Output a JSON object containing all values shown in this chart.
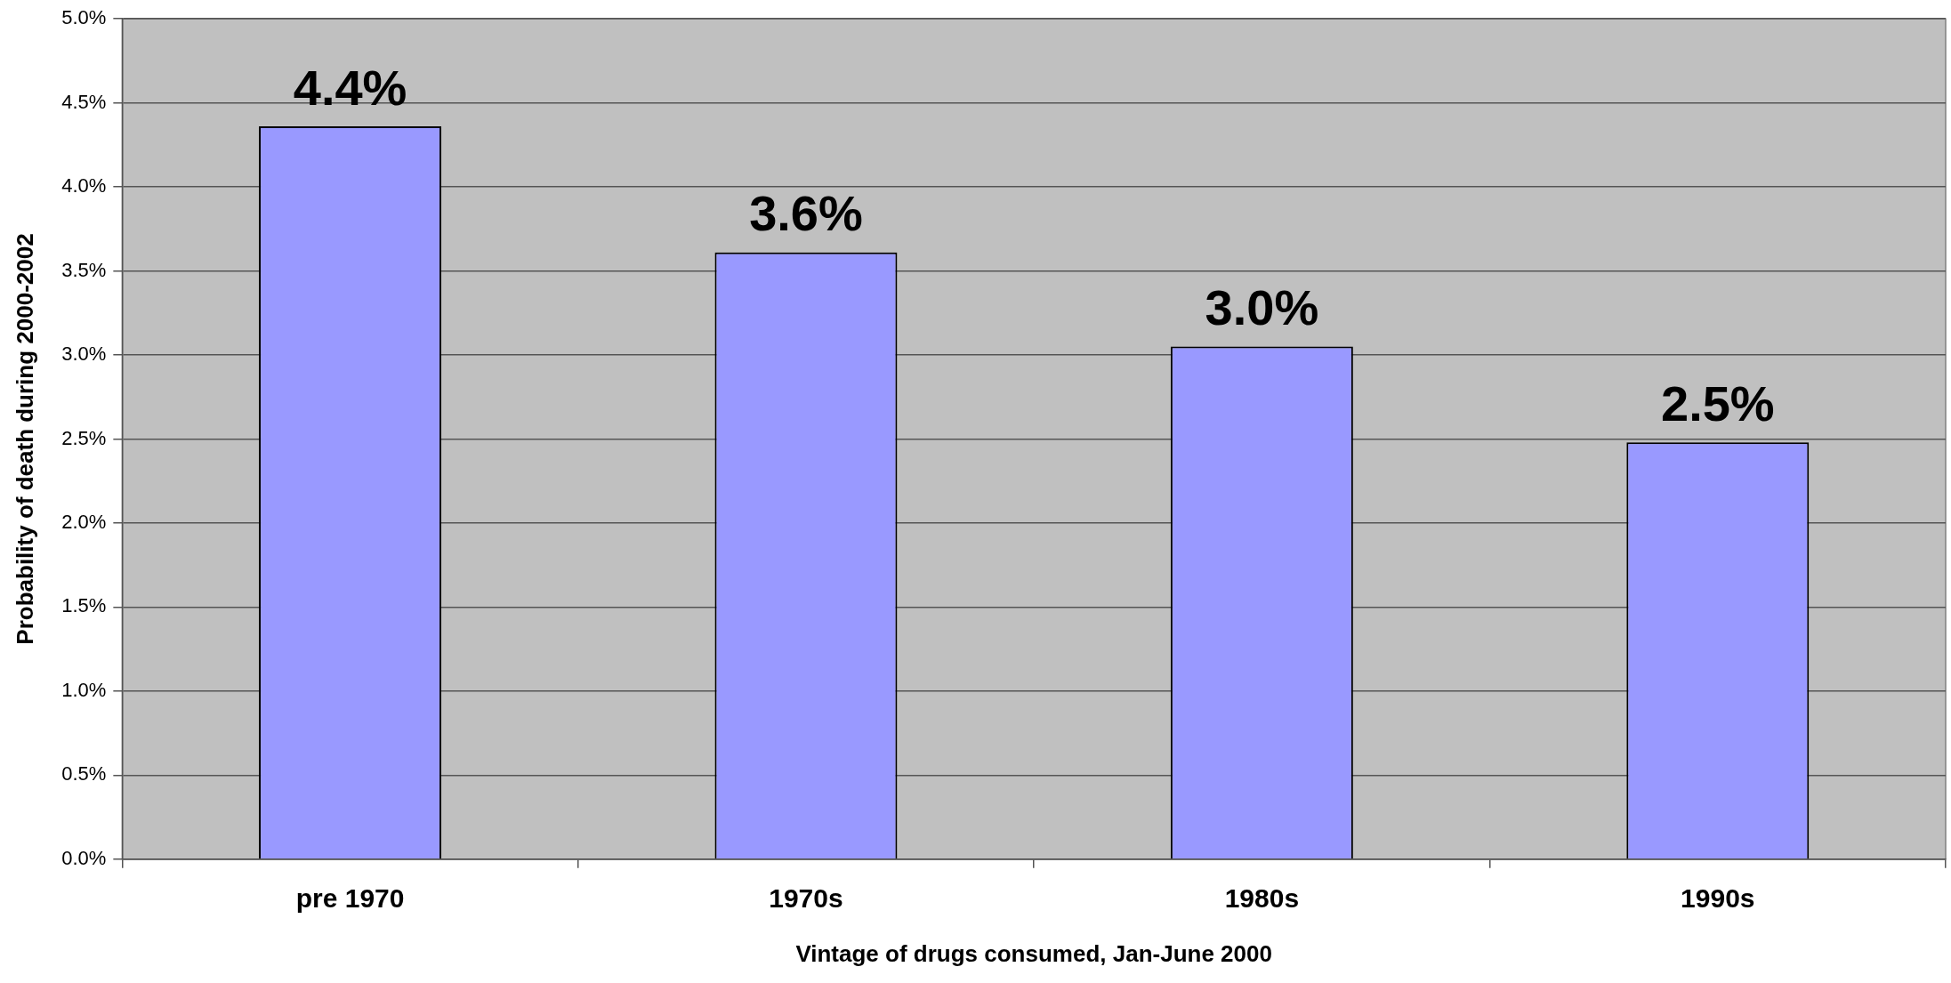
{
  "chart_data": {
    "type": "bar",
    "xlabel": "Vintage of drugs consumed, Jan-June 2000",
    "ylabel": "Probability of death during 2000-2002",
    "categories": [
      "pre 1970",
      "1970s",
      "1980s",
      "1990s"
    ],
    "values": [
      4.36,
      3.61,
      3.05,
      2.48
    ],
    "value_labels": [
      "4.4%",
      "3.6%",
      "3.0%",
      "2.5%"
    ],
    "color": "#9999ff",
    "ylim": [
      0,
      5
    ],
    "yticks": [
      {
        "value": 0,
        "label": "0.0%"
      },
      {
        "value": 0.5,
        "label": "0.5%"
      },
      {
        "value": 1,
        "label": "1.0%"
      },
      {
        "value": 1.5,
        "label": "1.5%"
      },
      {
        "value": 2,
        "label": "2.0%"
      },
      {
        "value": 2.5,
        "label": "2.5%"
      },
      {
        "value": 3,
        "label": "3.0%"
      },
      {
        "value": 3.5,
        "label": "3.5%"
      },
      {
        "value": 4,
        "label": "4.0%"
      },
      {
        "value": 4.5,
        "label": "4.5%"
      },
      {
        "value": 5,
        "label": "5.0%"
      }
    ],
    "grid": "y",
    "legend": false
  }
}
